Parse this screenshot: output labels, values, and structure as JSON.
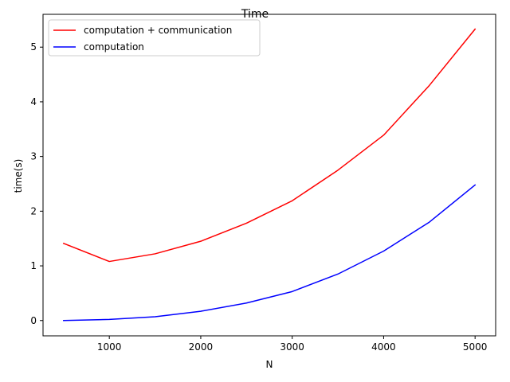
{
  "chart_data": {
    "type": "line",
    "title": "Time",
    "xlabel": "N",
    "ylabel": "time(s)",
    "x": [
      500,
      1000,
      1500,
      2000,
      2500,
      3000,
      3500,
      4000,
      4500,
      5000
    ],
    "series": [
      {
        "name": "computation + communication",
        "color": "#ff0000",
        "values": [
          1.41,
          1.08,
          1.22,
          1.45,
          1.78,
          2.19,
          2.75,
          3.39,
          4.3,
          5.33
        ]
      },
      {
        "name": "computation",
        "color": "#0000ff",
        "values": [
          0.0,
          0.02,
          0.07,
          0.17,
          0.32,
          0.53,
          0.85,
          1.27,
          1.8,
          2.48
        ]
      }
    ],
    "xlim": [
      275,
      5225
    ],
    "ylim": [
      -0.28,
      5.6
    ],
    "xticks": [
      1000,
      2000,
      3000,
      4000,
      5000
    ],
    "xtick_labels": [
      "1000",
      "2000",
      "3000",
      "4000",
      "5000"
    ],
    "yticks": [
      0,
      1,
      2,
      3,
      4,
      5
    ],
    "ytick_labels": [
      "0",
      "1",
      "2",
      "3",
      "4",
      "5"
    ],
    "grid": false,
    "legend_position": "top-left"
  }
}
